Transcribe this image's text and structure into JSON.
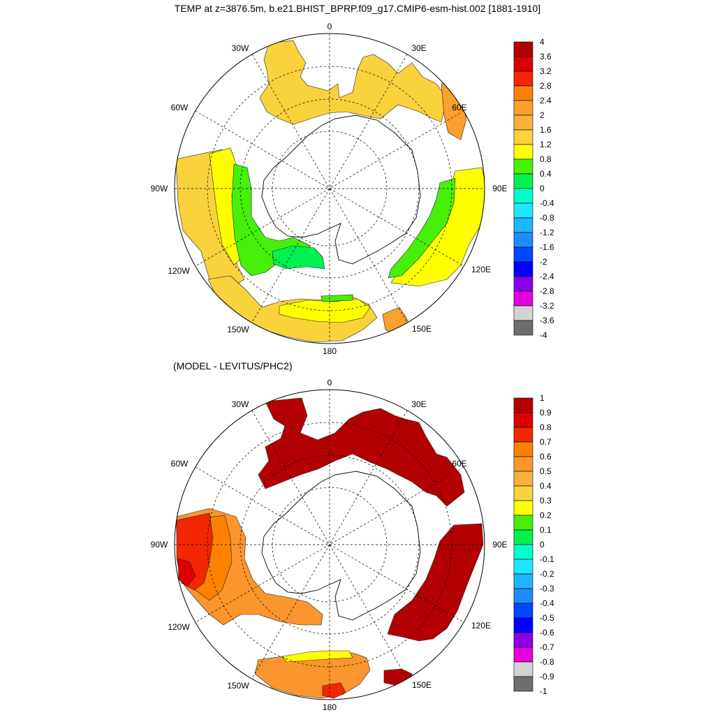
{
  "page": {
    "title": "TEMP at z=3876.5m, b.e21.BHIST_BPRP.f09_g17.CMIP6-esm-hist.002 [1881-1910]",
    "subtitle": "(MODEL - LEVITUS/PHC2)"
  },
  "map": {
    "projection": "south polar stereographic",
    "longitude_labels": [
      "0",
      "30E",
      "60E",
      "90E",
      "120E",
      "150E",
      "180",
      "150W",
      "120W",
      "90W",
      "60W",
      "30W"
    ]
  },
  "panels": [
    {
      "id": "model",
      "colorbar": {
        "labels": [
          "4",
          "3.6",
          "3.2",
          "2.8",
          "2.4",
          "2",
          "1.6",
          "1.2",
          "0.8",
          "0.4",
          "0",
          "-0.4",
          "-0.8",
          "-1.2",
          "-1.6",
          "-2",
          "-2.4",
          "-2.8",
          "-3.2",
          "-3.6",
          "-4"
        ],
        "colors": [
          "#b30000",
          "#dc0000",
          "#f22600",
          "#fa8200",
          "#faa02d",
          "#fab03c",
          "#fad23c",
          "#ffff00",
          "#46f00a",
          "#00f050",
          "#00ffcd",
          "#1ee6ff",
          "#1eb4ff",
          "#1e8cff",
          "#0046ff",
          "#0000ff",
          "#8c00e6",
          "#e600dc",
          "#d2d2d2",
          "#6e6e6e"
        ]
      },
      "fields": [
        {
          "region": "atlantic-south",
          "color": "#fad23c"
        },
        {
          "region": "indian-west",
          "color": "#faa02d"
        },
        {
          "region": "indian-east",
          "color": "#ffff00"
        },
        {
          "region": "indian-east-inner",
          "color": "#46f00a"
        },
        {
          "region": "pacific-east",
          "color": "#fad23c"
        },
        {
          "region": "pacific-east-inner",
          "color": "#ffff00"
        },
        {
          "region": "pacific-east-core",
          "color": "#46f00a"
        },
        {
          "region": "pacific-east-edge",
          "color": "#00f050"
        },
        {
          "region": "pacific-south",
          "color": "#ffff00"
        },
        {
          "region": "pacific-south-outer",
          "color": "#fad23c"
        },
        {
          "region": "pacific-south-core",
          "color": "#46f00a"
        },
        {
          "region": "tasman",
          "color": "#faa02d"
        }
      ]
    },
    {
      "id": "difference",
      "colorbar": {
        "labels": [
          "1",
          "0.9",
          "0.8",
          "0.7",
          "0.6",
          "0.5",
          "0.4",
          "0.3",
          "0.2",
          "0.1",
          "0",
          "-0.1",
          "-0.2",
          "-0.3",
          "-0.4",
          "-0.5",
          "-0.6",
          "-0.7",
          "-0.8",
          "-0.9",
          "-1"
        ],
        "colors": [
          "#b30000",
          "#dc0000",
          "#f22600",
          "#fa8200",
          "#fa962d",
          "#fab03c",
          "#fad23c",
          "#ffff00",
          "#46f00a",
          "#00f050",
          "#00ffcd",
          "#1ee6ff",
          "#1eb4ff",
          "#1e8cff",
          "#0046ff",
          "#0000ff",
          "#8c00e6",
          "#e600dc",
          "#d2d2d2",
          "#6e6e6e"
        ]
      },
      "fields": [
        {
          "region": "atlantic-south",
          "color": "#b30000"
        },
        {
          "region": "indian-east",
          "color": "#b30000"
        },
        {
          "region": "pacific-east",
          "color": "#fa962d"
        },
        {
          "region": "pacific-east-warm",
          "color": "#fa8200"
        },
        {
          "region": "pacific-east-hot",
          "color": "#f22600"
        },
        {
          "region": "pacific-east-core",
          "color": "#dc0000"
        },
        {
          "region": "pacific-south",
          "color": "#fa962d"
        },
        {
          "region": "pacific-south-edge",
          "color": "#ffff00"
        },
        {
          "region": "pacific-south-core",
          "color": "#f22600"
        },
        {
          "region": "tasman",
          "color": "#b30000"
        }
      ]
    }
  ]
}
